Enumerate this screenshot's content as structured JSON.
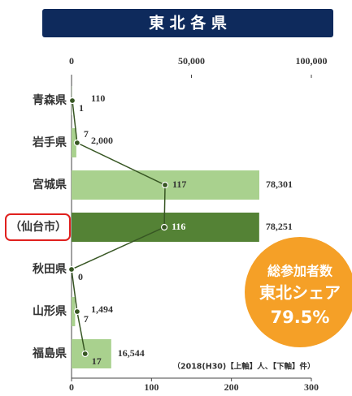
{
  "chart_data": {
    "type": "bar",
    "title": "東 北 各 県",
    "categories": [
      "青森県",
      "岩手県",
      "宮城県",
      "（仙台市）",
      "秋田県",
      "山形県",
      "福島県"
    ],
    "series": [
      {
        "type": "bar",
        "axis": "x",
        "values": [
          110,
          2000,
          78301,
          78251,
          null,
          1494,
          16544
        ],
        "value_labels": [
          "110",
          "2,000",
          "78,301",
          "78,251",
          null,
          "1,494",
          "16,544"
        ],
        "colors": [
          "#a9d18e",
          "#a9d18e",
          "#a9d18e",
          "#548235",
          "#a9d18e",
          "#a9d18e",
          "#a9d18e"
        ]
      },
      {
        "type": "line",
        "axis": "x2",
        "values": [
          1,
          7,
          117,
          116,
          0,
          7,
          17
        ],
        "color": "#375623"
      }
    ],
    "xlim": [
      0,
      100000
    ],
    "xticks": [
      0,
      {
        "value": 50000,
        "label": "50,000"
      },
      {
        "value": 100000,
        "label": "100,000"
      }
    ],
    "x2lim": [
      0,
      300
    ],
    "x2ticks": [
      0,
      100,
      200,
      300
    ],
    "badge": {
      "lines": [
        "総参加者数",
        "東北シェア",
        "79.5%"
      ],
      "color": "#f5a027"
    },
    "note": "（2018(H30)【上軸】人、【下軸】件）"
  }
}
